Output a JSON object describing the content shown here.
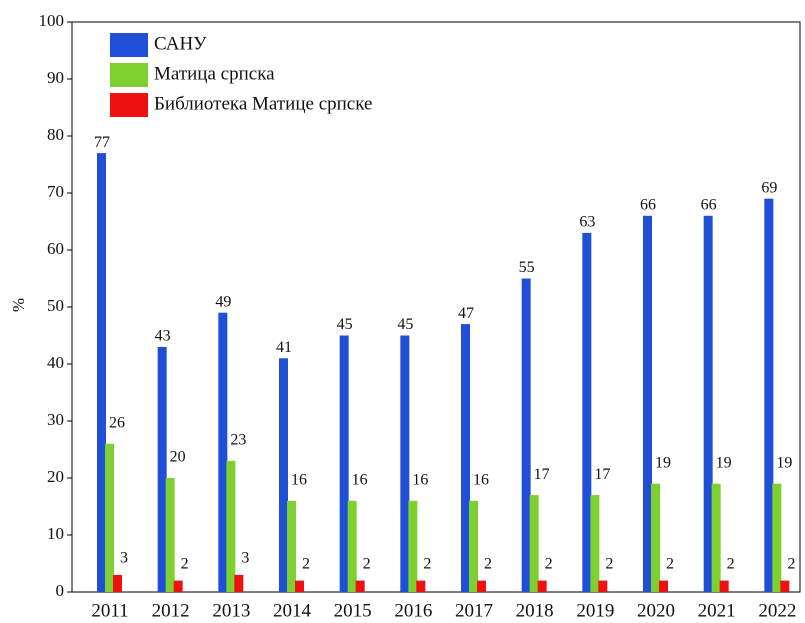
{
  "chart_data": {
    "type": "bar",
    "y_label": "%",
    "categories": [
      "2011",
      "2012",
      "2013",
      "2014",
      "2015",
      "2016",
      "2017",
      "2018",
      "2019",
      "2020",
      "2021",
      "2022"
    ],
    "series": [
      {
        "name": "САНУ",
        "color": "#1f4fd6",
        "values": [
          77,
          43,
          49,
          41,
          45,
          45,
          47,
          55,
          63,
          66,
          66,
          69
        ]
      },
      {
        "name": "Матица српска",
        "color": "#7ed02e",
        "values": [
          26,
          20,
          23,
          16,
          16,
          16,
          16,
          17,
          17,
          19,
          19,
          19
        ]
      },
      {
        "name": "Библиотека Матице српске",
        "color": "#ee1111",
        "values": [
          3,
          2,
          3,
          2,
          2,
          2,
          2,
          2,
          2,
          2,
          2,
          2
        ]
      }
    ],
    "ylim": [
      0,
      100
    ],
    "yticks": [
      0,
      10,
      20,
      30,
      40,
      50,
      60,
      70,
      80,
      90,
      100
    ],
    "grid": false,
    "legend": "upper left",
    "data_labels": true
  }
}
